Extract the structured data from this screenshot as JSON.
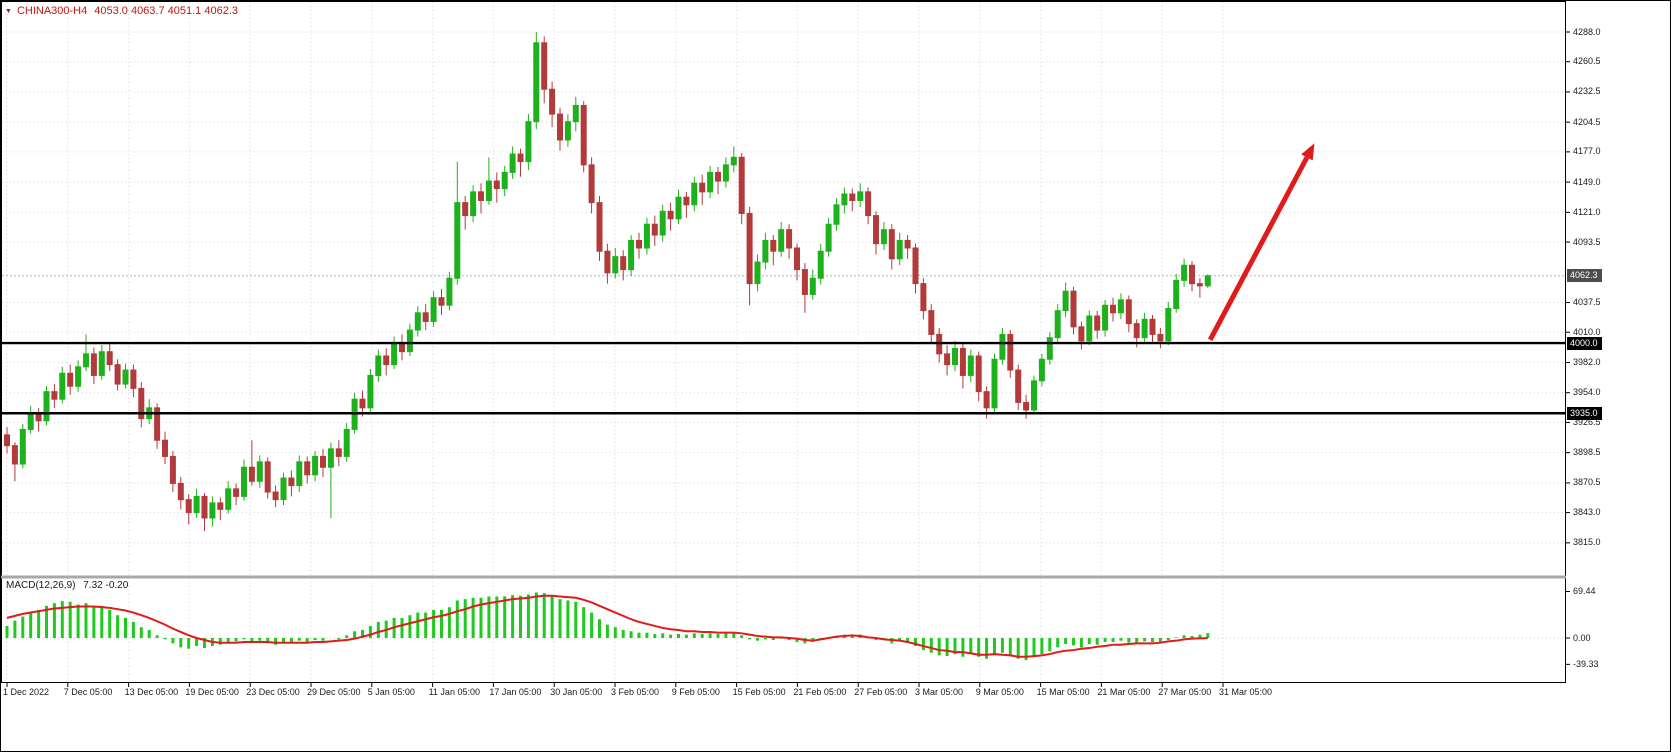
{
  "header": {
    "dropdown_icon": "▼",
    "symbol": "CHINA300-H4",
    "ohlc_values": "4053.0 4063.7 4051.1 4062.3",
    "text_color": "#c41414"
  },
  "price_axis": {
    "badges": [
      {
        "text": "4062.3",
        "price": 4062.3,
        "bg": "#4d4d4d",
        "role": "current-price"
      },
      {
        "text": "4000.0",
        "price": 4000.0,
        "bg": "#000000",
        "role": "level-line"
      },
      {
        "text": "3935.0",
        "price": 3935.0,
        "bg": "#000000",
        "role": "level-line"
      }
    ]
  },
  "macd_panel": {
    "title": "MACD(12,26,9)",
    "values": "7.32 -0.20"
  },
  "chart_data": [
    {
      "type": "candlestick",
      "symbol": "CHINA300-H4",
      "timeframe": "H4",
      "ylim": [
        3815,
        4288
      ],
      "y_tick_labels": [
        "4288.0",
        "4260.5",
        "4232.5",
        "4204.5",
        "4177.0",
        "4149.0",
        "4121.0",
        "4093.5",
        "4037.5",
        "4010.0",
        "3982.0",
        "3954.0",
        "3926.5",
        "3898.5",
        "3870.5",
        "3843.0",
        "3815.0"
      ],
      "x_labels": [
        "1 Dec 2022",
        "7 Dec 05:00",
        "13 Dec 05:00",
        "19 Dec 05:00",
        "23 Dec 05:00",
        "29 Dec 05:00",
        "5 Jan 05:00",
        "11 Jan 05:00",
        "17 Jan 05:00",
        "30 Jan 05:00",
        "3 Feb 05:00",
        "9 Feb 05:00",
        "15 Feb 05:00",
        "21 Feb 05:00",
        "27 Feb 05:00",
        "3 Mar 05:00",
        "9 Mar 05:00",
        "15 Mar 05:00",
        "21 Mar 05:00",
        "27 Mar 05:00",
        "31 Mar 05:00"
      ],
      "current_bar": {
        "open": 4053.0,
        "high": 4063.7,
        "low": 4051.1,
        "close": 4062.3
      },
      "hlines": [
        4000.0,
        3935.0
      ],
      "trend_arrow": {
        "start_bar": 152.3,
        "start_price": 4003,
        "end_bar": 165.5,
        "end_price": 4185,
        "color": "#e01b1b"
      },
      "colors": {
        "up": "#1db11d",
        "down": "#b23a3a",
        "grid": "#d4d4d4",
        "level_line": "#000000"
      },
      "ohlc": [
        [
          3915,
          3922,
          3898,
          3905
        ],
        [
          3905,
          3908,
          3872,
          3888
        ],
        [
          3888,
          3925,
          3884,
          3920
        ],
        [
          3920,
          3942,
          3916,
          3935
        ],
        [
          3935,
          3940,
          3918,
          3928
        ],
        [
          3928,
          3960,
          3924,
          3955
        ],
        [
          3955,
          3962,
          3940,
          3948
        ],
        [
          3948,
          3978,
          3944,
          3972
        ],
        [
          3972,
          3980,
          3952,
          3960
        ],
        [
          3960,
          3984,
          3955,
          3978
        ],
        [
          3978,
          4008,
          3974,
          3990
        ],
        [
          3990,
          3996,
          3962,
          3970
        ],
        [
          3970,
          3998,
          3966,
          3992
        ],
        [
          3992,
          3999,
          3974,
          3980
        ],
        [
          3980,
          3985,
          3956,
          3962
        ],
        [
          3962,
          3981,
          3958,
          3975
        ],
        [
          3975,
          3980,
          3950,
          3958
        ],
        [
          3958,
          3964,
          3922,
          3930
        ],
        [
          3930,
          3948,
          3925,
          3940
        ],
        [
          3940,
          3944,
          3902,
          3910
        ],
        [
          3910,
          3918,
          3888,
          3895
        ],
        [
          3895,
          3900,
          3862,
          3870
        ],
        [
          3870,
          3876,
          3846,
          3855
        ],
        [
          3855,
          3860,
          3832,
          3843
        ],
        [
          3843,
          3865,
          3838,
          3858
        ],
        [
          3858,
          3861,
          3826,
          3838
        ],
        [
          3838,
          3858,
          3830,
          3852
        ],
        [
          3852,
          3857,
          3836,
          3846
        ],
        [
          3846,
          3872,
          3842,
          3865
        ],
        [
          3865,
          3870,
          3850,
          3858
        ],
        [
          3858,
          3892,
          3854,
          3885
        ],
        [
          3885,
          3910,
          3868,
          3872
        ],
        [
          3872,
          3896,
          3866,
          3890
        ],
        [
          3890,
          3894,
          3856,
          3862
        ],
        [
          3862,
          3868,
          3848,
          3855
        ],
        [
          3855,
          3880,
          3850,
          3875
        ],
        [
          3875,
          3882,
          3858,
          3868
        ],
        [
          3868,
          3896,
          3862,
          3890
        ],
        [
          3890,
          3895,
          3870,
          3878
        ],
        [
          3878,
          3900,
          3872,
          3895
        ],
        [
          3895,
          3902,
          3876,
          3885
        ],
        [
          3885,
          3908,
          3838,
          3902
        ],
        [
          3902,
          3910,
          3886,
          3895
        ],
        [
          3895,
          3926,
          3890,
          3920
        ],
        [
          3920,
          3954,
          3916,
          3948
        ],
        [
          3948,
          3956,
          3932,
          3940
        ],
        [
          3940,
          3976,
          3936,
          3970
        ],
        [
          3970,
          3994,
          3964,
          3988
        ],
        [
          3988,
          3995,
          3970,
          3980
        ],
        [
          3980,
          4006,
          3976,
          4000
        ],
        [
          4000,
          4008,
          3984,
          3992
        ],
        [
          3992,
          4018,
          3988,
          4012
        ],
        [
          4012,
          4034,
          4006,
          4028
        ],
        [
          4028,
          4036,
          4012,
          4020
        ],
        [
          4020,
          4048,
          4015,
          4042
        ],
        [
          4042,
          4050,
          4026,
          4035
        ],
        [
          4035,
          4066,
          4030,
          4060
        ],
        [
          4060,
          4168,
          4054,
          4130
        ],
        [
          4130,
          4136,
          4105,
          4118
        ],
        [
          4118,
          4146,
          4112,
          4140
        ],
        [
          4140,
          4148,
          4120,
          4132
        ],
        [
          4132,
          4172,
          4128,
          4150
        ],
        [
          4150,
          4158,
          4130,
          4143
        ],
        [
          4143,
          4164,
          4136,
          4158
        ],
        [
          4158,
          4182,
          4152,
          4175
        ],
        [
          4175,
          4180,
          4154,
          4168
        ],
        [
          4168,
          4212,
          4160,
          4205
        ],
        [
          4205,
          4288,
          4198,
          4278
        ],
        [
          4278,
          4284,
          4222,
          4235
        ],
        [
          4235,
          4242,
          4200,
          4212
        ],
        [
          4212,
          4218,
          4178,
          4188
        ],
        [
          4188,
          4212,
          4182,
          4205
        ],
        [
          4205,
          4228,
          4196,
          4220
        ],
        [
          4220,
          4224,
          4158,
          4165
        ],
        [
          4165,
          4172,
          4120,
          4130
        ],
        [
          4130,
          4136,
          4076,
          4085
        ],
        [
          4085,
          4092,
          4055,
          4065
        ],
        [
          4065,
          4088,
          4060,
          4080
        ],
        [
          4080,
          4086,
          4058,
          4068
        ],
        [
          4068,
          4100,
          4062,
          4095
        ],
        [
          4095,
          4102,
          4078,
          4088
        ],
        [
          4088,
          4116,
          4082,
          4110
        ],
        [
          4110,
          4118,
          4090,
          4100
        ],
        [
          4100,
          4128,
          4094,
          4122
        ],
        [
          4122,
          4130,
          4104,
          4115
        ],
        [
          4115,
          4142,
          4110,
          4135
        ],
        [
          4135,
          4140,
          4116,
          4128
        ],
        [
          4128,
          4154,
          4122,
          4148
        ],
        [
          4148,
          4156,
          4128,
          4140
        ],
        [
          4140,
          4164,
          4134,
          4158
        ],
        [
          4158,
          4163,
          4138,
          4150
        ],
        [
          4150,
          4172,
          4144,
          4165
        ],
        [
          4165,
          4182,
          4158,
          4172
        ],
        [
          4172,
          4176,
          4110,
          4120
        ],
        [
          4120,
          4126,
          4035,
          4055
        ],
        [
          4055,
          4082,
          4048,
          4075
        ],
        [
          4075,
          4102,
          4068,
          4095
        ],
        [
          4095,
          4100,
          4072,
          4085
        ],
        [
          4085,
          4112,
          4080,
          4105
        ],
        [
          4105,
          4110,
          4078,
          4088
        ],
        [
          4088,
          4092,
          4058,
          4068
        ],
        [
          4068,
          4074,
          4028,
          4045
        ],
        [
          4045,
          4068,
          4040,
          4060
        ],
        [
          4060,
          4092,
          4054,
          4085
        ],
        [
          4085,
          4116,
          4080,
          4110
        ],
        [
          4110,
          4134,
          4104,
          4128
        ],
        [
          4128,
          4144,
          4120,
          4138
        ],
        [
          4138,
          4143,
          4122,
          4132
        ],
        [
          4132,
          4148,
          4126,
          4140
        ],
        [
          4140,
          4144,
          4110,
          4118
        ],
        [
          4118,
          4122,
          4082,
          4092
        ],
        [
          4092,
          4112,
          4086,
          4105
        ],
        [
          4105,
          4110,
          4068,
          4078
        ],
        [
          4078,
          4102,
          4072,
          4095
        ],
        [
          4095,
          4100,
          4078,
          4088
        ],
        [
          4088,
          4092,
          4046,
          4055
        ],
        [
          4055,
          4060,
          4022,
          4030
        ],
        [
          4030,
          4036,
          4000,
          4008
        ],
        [
          4008,
          4014,
          3982,
          3990
        ],
        [
          3990,
          3998,
          3970,
          3980
        ],
        [
          3980,
          4002,
          3974,
          3995
        ],
        [
          3995,
          3999,
          3958,
          3970
        ],
        [
          3970,
          3994,
          3964,
          3988
        ],
        [
          3988,
          3992,
          3946,
          3955
        ],
        [
          3955,
          3960,
          3930,
          3940
        ],
        [
          3940,
          3990,
          3936,
          3985
        ],
        [
          3985,
          4014,
          3980,
          4008
        ],
        [
          4008,
          4012,
          3968,
          3975
        ],
        [
          3975,
          3980,
          3938,
          3945
        ],
        [
          3945,
          3952,
          3930,
          3938
        ],
        [
          3938,
          3970,
          3934,
          3965
        ],
        [
          3965,
          3990,
          3960,
          3985
        ],
        [
          3985,
          4010,
          3980,
          4005
        ],
        [
          4005,
          4036,
          4000,
          4030
        ],
        [
          4030,
          4056,
          4024,
          4048
        ],
        [
          4048,
          4052,
          4008,
          4015
        ],
        [
          4015,
          4020,
          3994,
          4002
        ],
        [
          4002,
          4030,
          3998,
          4025
        ],
        [
          4025,
          4030,
          4004,
          4012
        ],
        [
          4012,
          4040,
          4006,
          4035
        ],
        [
          4035,
          4042,
          4020,
          4028
        ],
        [
          4028,
          4046,
          4022,
          4040
        ],
        [
          4040,
          4044,
          4010,
          4018
        ],
        [
          4018,
          4022,
          3996,
          4005
        ],
        [
          4005,
          4028,
          4000,
          4022
        ],
        [
          4022,
          4026,
          4000,
          4008
        ],
        [
          4008,
          4014,
          3995,
          4002
        ],
        [
          4002,
          4038,
          3998,
          4032
        ],
        [
          4032,
          4064,
          4028,
          4058
        ],
        [
          4058,
          4078,
          4052,
          4072
        ],
        [
          4072,
          4076,
          4048,
          4055
        ],
        [
          4055,
          4060,
          4042,
          4053
        ],
        [
          4053,
          4063.7,
          4051.1,
          4062.3
        ]
      ]
    },
    {
      "type": "bar",
      "title": "MACD(12,26,9)",
      "macd_value": 7.32,
      "signal_value": -0.2,
      "ylim": [
        -39.33,
        69.44
      ],
      "y_tick_labels": [
        "69.44",
        "0.00",
        "-39.33"
      ],
      "colors": {
        "histogram": "#1fca1f",
        "signal": "#e01b1b"
      },
      "histogram": [
        18,
        26,
        32,
        38,
        42,
        48,
        52,
        55,
        54,
        50,
        52,
        46,
        48,
        42,
        34,
        30,
        24,
        16,
        12,
        4,
        -2,
        -8,
        -14,
        -16,
        -12,
        -15,
        -12,
        -10,
        -6,
        -5,
        -2,
        -6,
        -4,
        -8,
        -10,
        -7,
        -8,
        -4,
        -6,
        -3,
        -4,
        0,
        -2,
        4,
        10,
        12,
        18,
        24,
        26,
        30,
        30,
        34,
        38,
        38,
        42,
        42,
        46,
        56,
        58,
        60,
        60,
        62,
        62,
        62,
        64,
        63,
        65,
        68,
        67,
        62,
        58,
        56,
        54,
        46,
        38,
        28,
        20,
        16,
        12,
        10,
        8,
        8,
        6,
        7,
        5,
        6,
        5,
        7,
        6,
        7,
        6,
        7,
        8,
        4,
        -2,
        -4,
        -2,
        -3,
        -1,
        -3,
        -6,
        -8,
        -6,
        -3,
        0,
        3,
        5,
        4,
        5,
        2,
        -3,
        -2,
        -8,
        -5,
        -7,
        -12,
        -18,
        -22,
        -26,
        -27,
        -24,
        -28,
        -24,
        -28,
        -31,
        -26,
        -22,
        -27,
        -31,
        -33,
        -28,
        -24,
        -20,
        -14,
        -9,
        -11,
        -14,
        -9,
        -10,
        -6,
        -6,
        -4,
        -7,
        -9,
        -5,
        -6,
        -7,
        -3,
        1,
        4,
        3,
        5,
        7.32
      ],
      "signal_line": [
        30,
        33,
        36,
        38,
        40,
        42,
        44,
        45,
        46,
        47,
        47,
        47,
        46,
        45,
        43,
        41,
        38,
        34,
        30,
        25,
        20,
        14,
        9,
        4,
        0,
        -3,
        -6,
        -7,
        -7,
        -7,
        -6,
        -6,
        -6,
        -6,
        -7,
        -7,
        -7,
        -7,
        -7,
        -6,
        -6,
        -5,
        -4,
        -3,
        -1,
        2,
        5,
        9,
        12,
        16,
        19,
        22,
        25,
        28,
        31,
        33,
        36,
        40,
        43,
        47,
        50,
        52,
        54,
        56,
        58,
        59,
        60,
        62,
        63,
        63,
        62,
        61,
        60,
        57,
        53,
        48,
        43,
        38,
        33,
        28,
        24,
        21,
        18,
        15,
        13,
        12,
        10,
        10,
        9,
        9,
        8,
        8,
        8,
        7,
        5,
        3,
        2,
        1,
        1,
        0,
        -1,
        -3,
        -4,
        -2,
        0,
        2,
        3,
        4,
        3,
        1,
        0,
        -2,
        -3,
        -4,
        -6,
        -9,
        -12,
        -15,
        -18,
        -19,
        -21,
        -21,
        -23,
        -25,
        -25,
        -24,
        -25,
        -26,
        -28,
        -28,
        -27,
        -26,
        -24,
        -21,
        -19,
        -18,
        -16,
        -15,
        -13,
        -12,
        -10,
        -10,
        -9,
        -8,
        -8,
        -8,
        -7,
        -5,
        -4,
        -2,
        -1,
        -0.5,
        -0.2
      ]
    }
  ]
}
